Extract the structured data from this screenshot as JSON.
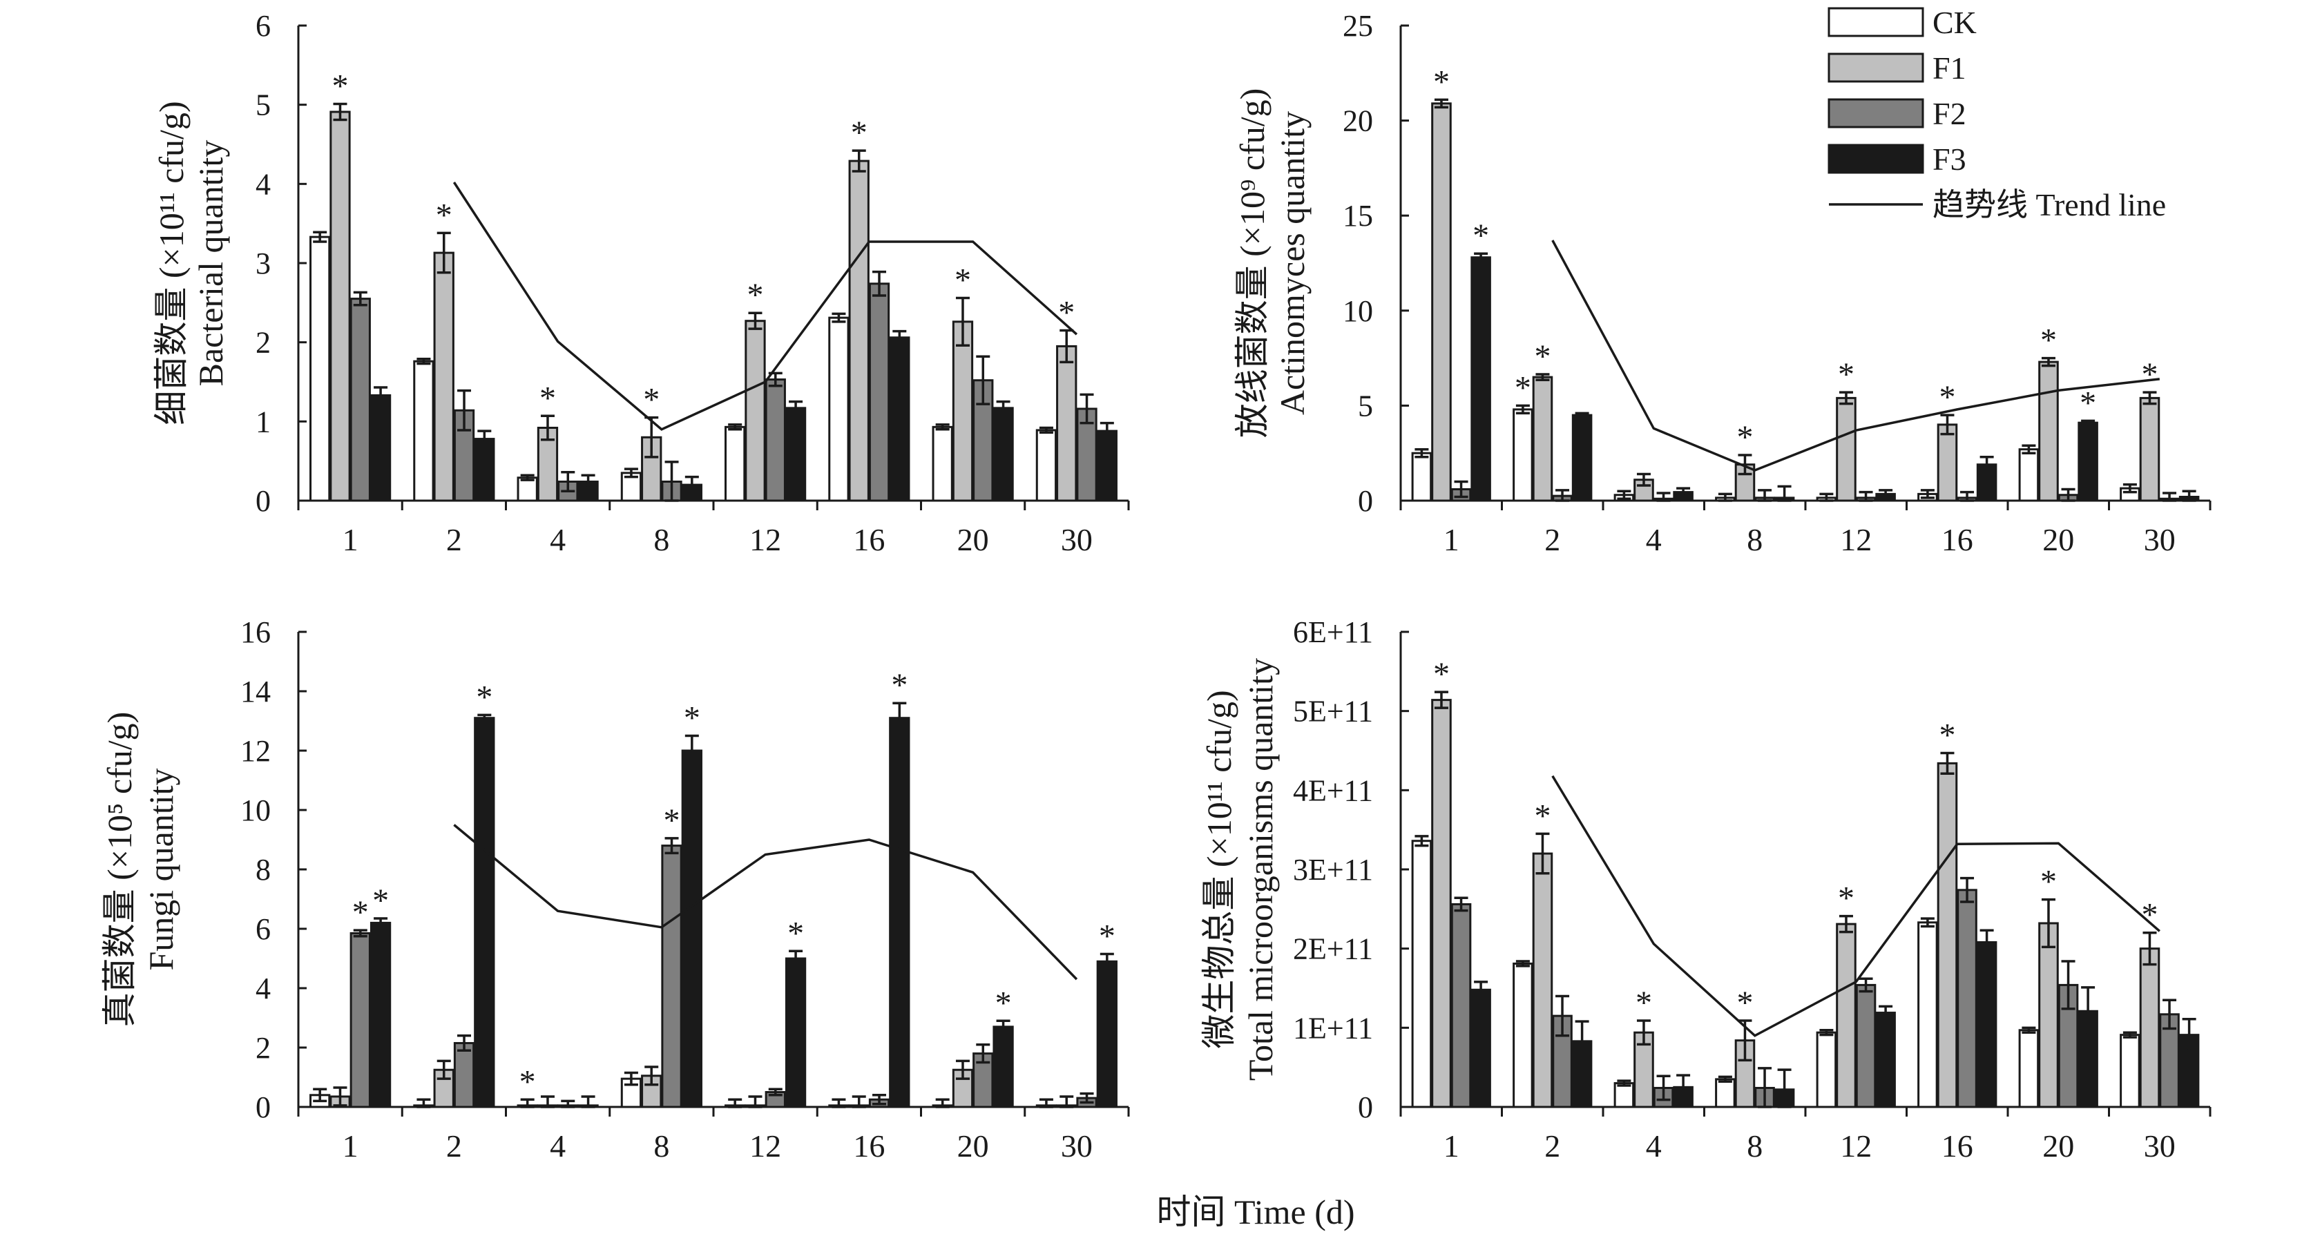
{
  "figure": {
    "x_title": "时间 Time (d)",
    "legend": {
      "entries": [
        "CK",
        "F1",
        "F2",
        "F3"
      ],
      "trend_label": "趋势线 Trend line"
    }
  },
  "colors": {
    "CK": "#ffffff",
    "F1": "#bfbfbf",
    "F2": "#7f7f7f",
    "F3": "#1a1a1a",
    "stroke": "#1a1a1a"
  },
  "chart_data": [
    {
      "type": "bar",
      "panel": "bacteria",
      "ylabel_cn": "细菌数量 (×10¹¹ cfu/g)",
      "ylabel_en": "Bacterial quantity",
      "categories": [
        "1",
        "2",
        "4",
        "8",
        "12",
        "16",
        "20",
        "30"
      ],
      "ylim": [
        0,
        6
      ],
      "yticks": [
        "0",
        "1",
        "2",
        "3",
        "4",
        "5",
        "6"
      ],
      "series": [
        {
          "name": "CK",
          "values": [
            3.33,
            1.76,
            0.29,
            0.35,
            0.93,
            2.31,
            0.93,
            0.89
          ],
          "errors": [
            0.06,
            0.03,
            0.03,
            0.05,
            0.03,
            0.05,
            0.03,
            0.03
          ]
        },
        {
          "name": "F1",
          "values": [
            4.91,
            3.13,
            0.92,
            0.8,
            2.27,
            4.29,
            2.26,
            1.95
          ],
          "errors": [
            0.1,
            0.25,
            0.15,
            0.25,
            0.1,
            0.13,
            0.3,
            0.2
          ]
        },
        {
          "name": "F2",
          "values": [
            2.55,
            1.14,
            0.24,
            0.24,
            1.53,
            2.74,
            1.52,
            1.16
          ],
          "errors": [
            0.08,
            0.25,
            0.12,
            0.25,
            0.08,
            0.15,
            0.3,
            0.18
          ]
        },
        {
          "name": "F3",
          "values": [
            1.33,
            0.78,
            0.24,
            0.2,
            1.17,
            2.06,
            1.17,
            0.88
          ],
          "errors": [
            0.1,
            0.1,
            0.08,
            0.1,
            0.08,
            0.08,
            0.08,
            0.1
          ]
        }
      ],
      "significance": [
        [
          "*",
          "",
          "",
          ""
        ],
        [
          "*",
          "",
          "",
          ""
        ],
        [
          "*",
          "",
          "",
          ""
        ],
        [
          "*",
          "",
          "",
          ""
        ],
        [
          "*",
          "",
          "",
          ""
        ],
        [
          "*",
          "",
          "",
          ""
        ],
        [
          "*",
          "",
          "",
          ""
        ],
        [
          "*",
          "",
          "",
          ""
        ]
      ],
      "trend": [
        4.02,
        2.01,
        0.9,
        1.5,
        3.27,
        3.27,
        2.1
      ],
      "trend_from_category": 1
    },
    {
      "type": "bar",
      "panel": "actinomyces",
      "ylabel_cn": "放线菌数量 (×10⁹ cfu/g)",
      "ylabel_en": "Actinomyces quantity",
      "categories": [
        "1",
        "2",
        "4",
        "8",
        "12",
        "16",
        "20",
        "30"
      ],
      "ylim": [
        0,
        25
      ],
      "yticks": [
        "0",
        "5",
        "10",
        "15",
        "20",
        "25"
      ],
      "series": [
        {
          "name": "CK",
          "values": [
            2.5,
            4.8,
            0.3,
            0.15,
            0.15,
            0.35,
            2.7,
            0.65
          ],
          "errors": [
            0.2,
            0.2,
            0.2,
            0.2,
            0.2,
            0.2,
            0.2,
            0.2
          ]
        },
        {
          "name": "F1",
          "values": [
            20.9,
            6.5,
            1.1,
            1.9,
            5.4,
            4.0,
            7.3,
            5.4
          ],
          "errors": [
            0.2,
            0.15,
            0.3,
            0.5,
            0.3,
            0.5,
            0.2,
            0.3
          ]
        },
        {
          "name": "F2",
          "values": [
            0.6,
            0.25,
            0.1,
            0.15,
            0.15,
            0.15,
            0.3,
            0.1
          ],
          "errors": [
            0.4,
            0.3,
            0.3,
            0.4,
            0.3,
            0.3,
            0.3,
            0.3
          ]
        },
        {
          "name": "F3",
          "values": [
            12.8,
            4.5,
            0.45,
            0.15,
            0.35,
            1.9,
            4.1,
            0.2
          ],
          "errors": [
            0.2,
            0.1,
            0.2,
            0.6,
            0.2,
            0.4,
            0.1,
            0.3
          ]
        }
      ],
      "significance": [
        [
          "*",
          "*"
        ],
        [
          "*",
          "*"
        ],
        [
          ""
        ],
        [
          "*"
        ],
        [
          "*"
        ],
        [
          "*"
        ],
        [
          "*",
          "*"
        ],
        [
          "*"
        ]
      ],
      "trend": [
        13.7,
        3.8,
        1.6,
        3.7,
        4.8,
        5.8,
        6.4
      ],
      "trend_from_category": 1
    },
    {
      "type": "bar",
      "panel": "fungi",
      "ylabel_cn": "真菌数量 (×10⁵ cfu/g)",
      "ylabel_en": "Fungi quantity",
      "categories": [
        "1",
        "2",
        "4",
        "8",
        "12",
        "16",
        "20",
        "30"
      ],
      "ylim": [
        0,
        16
      ],
      "yticks": [
        "0",
        "2",
        "4",
        "6",
        "8",
        "10",
        "12",
        "14",
        "16"
      ],
      "series": [
        {
          "name": "CK",
          "values": [
            0.4,
            0.05,
            0.05,
            0.95,
            0.05,
            0.05,
            0.05,
            0.05
          ],
          "errors": [
            0.2,
            0.2,
            0.2,
            0.2,
            0.2,
            0.2,
            0.2,
            0.2
          ]
        },
        {
          "name": "F1",
          "values": [
            0.35,
            1.25,
            0.05,
            1.05,
            0.05,
            0.05,
            1.25,
            0.05
          ],
          "errors": [
            0.3,
            0.3,
            0.3,
            0.3,
            0.3,
            0.3,
            0.3,
            0.3
          ]
        },
        {
          "name": "F2",
          "values": [
            5.85,
            2.15,
            0.05,
            8.8,
            0.5,
            0.25,
            1.8,
            0.3
          ],
          "errors": [
            0.1,
            0.25,
            0.15,
            0.25,
            0.1,
            0.15,
            0.3,
            0.15
          ]
        },
        {
          "name": "F3",
          "values": [
            6.2,
            13.1,
            0.05,
            12.0,
            5.0,
            13.1,
            2.7,
            4.9
          ],
          "errors": [
            0.15,
            0.1,
            0.3,
            0.5,
            0.25,
            0.5,
            0.2,
            0.25
          ]
        }
      ],
      "significance": [
        [
          "*",
          "*"
        ],
        [
          "*"
        ],
        [
          "*"
        ],
        [
          "*",
          "*"
        ],
        [
          "*"
        ],
        [
          "*"
        ],
        [
          "*"
        ],
        [
          "*"
        ]
      ],
      "trend": [
        9.5,
        6.6,
        6.05,
        8.5,
        9.0,
        7.9,
        4.3
      ],
      "trend_from_category": 1
    },
    {
      "type": "bar",
      "panel": "total",
      "ylabel_cn": "微生物总量 (×10¹¹ cfu/g)",
      "ylabel_en": "Total microorganisms quantity",
      "categories": [
        "1",
        "2",
        "4",
        "8",
        "12",
        "16",
        "20",
        "30"
      ],
      "ylim": [
        0,
        600000000000
      ],
      "yticks": [
        "0",
        "1E+11",
        "2E+11",
        "3E+11",
        "4E+11",
        "5E+11",
        "6E+11"
      ],
      "series": [
        {
          "name": "CK",
          "values": [
            336000000000,
            181000000000,
            30000000000,
            35000000000,
            94000000000,
            233000000000,
            97000000000,
            91000000000
          ],
          "errors": [
            6000000000,
            3000000000,
            3000000000,
            3000000000,
            3000000000,
            5000000000,
            3000000000,
            3000000000
          ]
        },
        {
          "name": "F1",
          "values": [
            514000000000,
            320000000000,
            94000000000,
            84000000000,
            231000000000,
            434000000000,
            232000000000,
            200000000000
          ],
          "errors": [
            10000000000,
            25000000000,
            15000000000,
            25000000000,
            10000000000,
            13000000000,
            30000000000,
            20000000000
          ]
        },
        {
          "name": "F2",
          "values": [
            256000000000,
            115000000000,
            24000000000,
            24000000000,
            154000000000,
            274000000000,
            154000000000,
            117000000000
          ],
          "errors": [
            8000000000,
            25000000000,
            15000000000,
            25000000000,
            8000000000,
            15000000000,
            30000000000,
            18000000000
          ]
        },
        {
          "name": "F3",
          "values": [
            148000000000,
            83000000000,
            25000000000,
            22000000000,
            119000000000,
            208000000000,
            121000000000,
            91000000000
          ],
          "errors": [
            10000000000,
            25000000000,
            15000000000,
            25000000000,
            8000000000,
            15000000000,
            30000000000,
            20000000000
          ]
        }
      ],
      "significance": [
        [
          "*"
        ],
        [
          "*"
        ],
        [
          "*"
        ],
        [
          "*"
        ],
        [
          "*"
        ],
        [
          "*"
        ],
        [
          "*"
        ],
        [
          "*"
        ]
      ],
      "trend": [
        418000000000,
        206000000000,
        90000000000,
        158000000000,
        332000000000,
        333000000000,
        222000000000
      ],
      "trend_from_category": 1
    }
  ]
}
